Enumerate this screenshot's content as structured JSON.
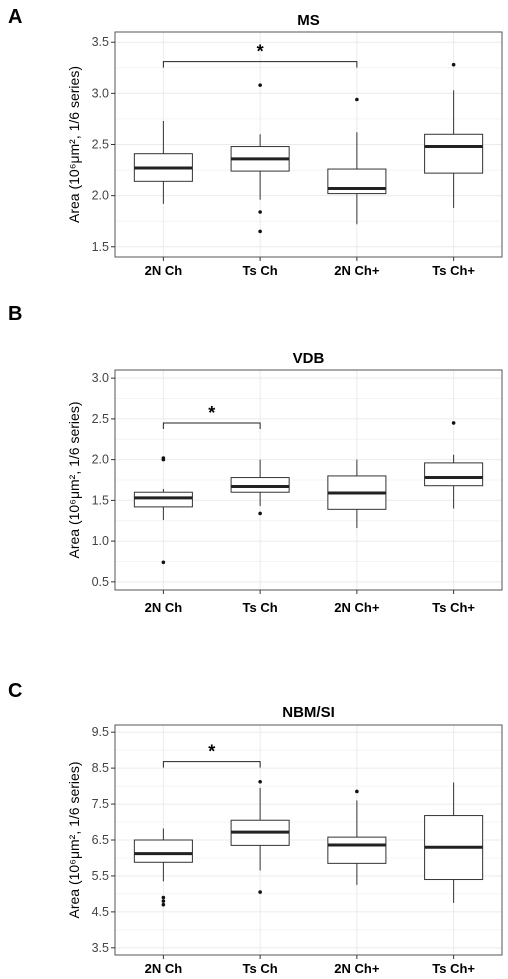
{
  "chart_data": [
    {
      "panel": "A",
      "type": "box",
      "title": "MS",
      "ylabel": "Area (10⁶μm², 1/6 series)",
      "categories": [
        "2N Ch",
        "Ts Ch",
        "2N Ch+",
        "Ts Ch+"
      ],
      "yticks": [
        1.5,
        2.0,
        2.5,
        3.0,
        3.5
      ],
      "ytick_labels": [
        "1.5",
        "2.0",
        "2.5",
        "3.0",
        "3.5"
      ],
      "ylim": [
        1.4,
        3.6
      ],
      "boxes": [
        {
          "whisker_low": 1.92,
          "q1": 2.14,
          "median": 2.27,
          "q3": 2.41,
          "whisker_high": 2.73,
          "outliers": []
        },
        {
          "whisker_low": 1.96,
          "q1": 2.24,
          "median": 2.36,
          "q3": 2.48,
          "whisker_high": 2.6,
          "outliers": [
            3.08,
            1.84,
            1.65
          ]
        },
        {
          "whisker_low": 1.72,
          "q1": 2.02,
          "median": 2.07,
          "q3": 2.26,
          "whisker_high": 2.62,
          "outliers": [
            2.94
          ]
        },
        {
          "whisker_low": 1.88,
          "q1": 2.22,
          "median": 2.48,
          "q3": 2.6,
          "whisker_high": 3.03,
          "outliers": [
            3.28
          ]
        }
      ],
      "significance": {
        "from": 0,
        "to": 2,
        "y": 3.31,
        "label": "*"
      },
      "grid": true
    },
    {
      "panel": "B",
      "type": "box",
      "title": "VDB",
      "ylabel": "Area (10⁶μm², 1/6 series)",
      "categories": [
        "2N Ch",
        "Ts Ch",
        "2N Ch+",
        "Ts Ch+"
      ],
      "yticks": [
        0.5,
        1.0,
        1.5,
        2.0,
        2.5,
        3.0
      ],
      "ytick_labels": [
        "0.5",
        "1.0",
        "1.5",
        "2.0",
        "2.5",
        "3.0"
      ],
      "ylim": [
        0.4,
        3.1
      ],
      "boxes": [
        {
          "whisker_low": 1.26,
          "q1": 1.42,
          "median": 1.53,
          "q3": 1.6,
          "whisker_high": 1.64,
          "outliers": [
            2.02,
            2.0,
            0.74
          ]
        },
        {
          "whisker_low": 1.43,
          "q1": 1.6,
          "median": 1.67,
          "q3": 1.78,
          "whisker_high": 2.0,
          "outliers": [
            1.34
          ]
        },
        {
          "whisker_low": 1.16,
          "q1": 1.39,
          "median": 1.59,
          "q3": 1.8,
          "whisker_high": 2.0,
          "outliers": []
        },
        {
          "whisker_low": 1.4,
          "q1": 1.68,
          "median": 1.78,
          "q3": 1.96,
          "whisker_high": 2.06,
          "outliers": [
            2.45
          ]
        }
      ],
      "significance": {
        "from": 0,
        "to": 1,
        "y": 2.45,
        "label": "*"
      },
      "grid": true
    },
    {
      "panel": "C",
      "type": "box",
      "title": "NBM/SI",
      "ylabel": "Area (10⁶μm², 1/6 series)",
      "categories": [
        "2N Ch",
        "Ts Ch",
        "2N Ch+",
        "Ts Ch+"
      ],
      "yticks": [
        3.5,
        4.5,
        5.5,
        6.5,
        7.5,
        8.5,
        9.5
      ],
      "ytick_labels": [
        "3.5",
        "4.5",
        "5.5",
        "6.5",
        "7.5",
        "8.5",
        "9.5"
      ],
      "ylim": [
        3.3,
        9.7
      ],
      "boxes": [
        {
          "whisker_low": 5.35,
          "q1": 5.88,
          "median": 6.12,
          "q3": 6.5,
          "whisker_high": 6.82,
          "outliers": [
            4.9,
            4.8,
            4.7
          ]
        },
        {
          "whisker_low": 5.65,
          "q1": 6.35,
          "median": 6.72,
          "q3": 7.05,
          "whisker_high": 7.95,
          "outliers": [
            8.12,
            5.05
          ]
        },
        {
          "whisker_low": 5.25,
          "q1": 5.85,
          "median": 6.36,
          "q3": 6.58,
          "whisker_high": 7.6,
          "outliers": [
            7.85
          ]
        },
        {
          "whisker_low": 4.75,
          "q1": 5.4,
          "median": 6.3,
          "q3": 7.18,
          "whisker_high": 8.1,
          "outliers": []
        }
      ],
      "significance": {
        "from": 0,
        "to": 1,
        "y": 8.68,
        "label": "*"
      },
      "grid": true
    }
  ]
}
